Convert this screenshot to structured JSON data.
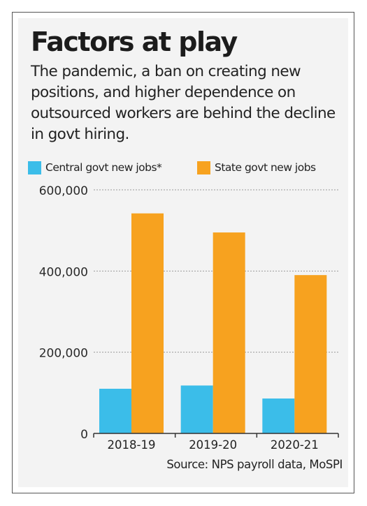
{
  "header": {
    "title": "Factors at play",
    "subtitle": "The pandemic, a ban on creating new positions, and higher dependence on outsourced workers are behind the decline in govt hiring."
  },
  "legend": {
    "items": [
      {
        "label": "Central govt new jobs*",
        "color": "#3bbde9"
      },
      {
        "label": "State govt new jobs",
        "color": "#f7a21f"
      }
    ]
  },
  "source": "Source: NPS payroll data, MoSPI",
  "chart_data": {
    "type": "bar",
    "categories": [
      "2018-19",
      "2019-20",
      "2020-21"
    ],
    "series": [
      {
        "name": "Central govt new jobs*",
        "color": "#3bbde9",
        "values": [
          110000,
          118000,
          86000
        ]
      },
      {
        "name": "State govt new jobs",
        "color": "#f7a21f",
        "values": [
          542000,
          495000,
          390000
        ]
      }
    ],
    "title": "Factors at play",
    "subtitle": "The pandemic, a ban on creating new positions, and higher dependence on outsourced workers are behind the decline in govt hiring.",
    "xlabel": "",
    "ylabel": "",
    "ylim": [
      0,
      600000
    ],
    "yticks": [
      0,
      200000,
      400000,
      600000
    ],
    "ytick_labels": [
      "0",
      "200,000",
      "400,000",
      "600,000"
    ],
    "grid": true,
    "legend_position": "top-left"
  }
}
